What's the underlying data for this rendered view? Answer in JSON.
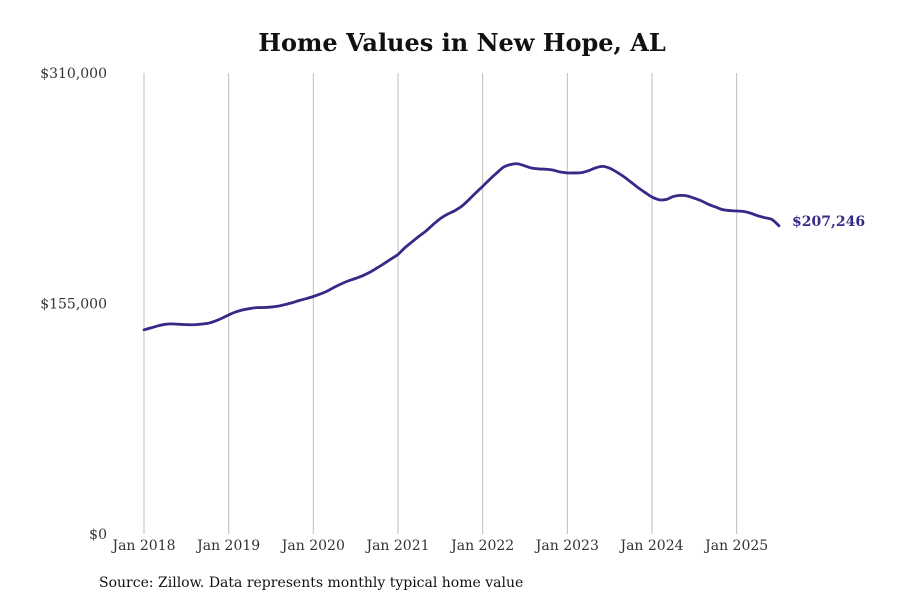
{
  "chart_data": {
    "type": "line",
    "title": "Home Values in New Hope, AL",
    "xlabel": "",
    "ylabel": "",
    "source": "Source: Zillow. Data represents monthly typical home value",
    "x_tick_labels": [
      "Jan 2018",
      "Jan 2019",
      "Jan 2020",
      "Jan 2021",
      "Jan 2022",
      "Jan 2023",
      "Jan 2024",
      "Jan 2025"
    ],
    "y_tick_labels": [
      "$0",
      "$155,000",
      "$310,000"
    ],
    "y_ticks": [
      0,
      155000,
      310000
    ],
    "ylim": [
      0,
      310000
    ],
    "xlim": [
      "2018-01",
      "2025-07"
    ],
    "grid": "vertical",
    "line_color": "#352a87",
    "end_label": "$207,246",
    "series": [
      {
        "x": [
          "2018-01",
          "2018-02",
          "2018-03",
          "2018-04",
          "2018-05",
          "2018-06",
          "2018-07",
          "2018-08",
          "2018-09",
          "2018-10",
          "2018-11",
          "2018-12",
          "2019-01",
          "2019-02",
          "2019-03",
          "2019-04",
          "2019-05",
          "2019-06",
          "2019-07",
          "2019-08",
          "2019-09",
          "2019-10",
          "2019-11",
          "2019-12",
          "2020-01",
          "2020-02",
          "2020-03",
          "2020-04",
          "2020-05",
          "2020-06",
          "2020-07",
          "2020-08",
          "2020-09",
          "2020-10",
          "2020-11",
          "2020-12",
          "2021-01",
          "2021-02",
          "2021-03",
          "2021-04",
          "2021-05",
          "2021-06",
          "2021-07",
          "2021-08",
          "2021-09",
          "2021-10",
          "2021-11",
          "2021-12",
          "2022-01",
          "2022-02",
          "2022-03",
          "2022-04",
          "2022-05",
          "2022-06",
          "2022-07",
          "2022-08",
          "2022-09",
          "2022-10",
          "2022-11",
          "2022-12",
          "2023-01",
          "2023-02",
          "2023-03",
          "2023-04",
          "2023-05",
          "2023-06",
          "2023-07",
          "2023-08",
          "2023-09",
          "2023-10",
          "2023-11",
          "2023-12",
          "2024-01",
          "2024-02",
          "2024-03",
          "2024-04",
          "2024-05",
          "2024-06",
          "2024-07",
          "2024-08",
          "2024-09",
          "2024-10",
          "2024-11",
          "2024-12",
          "2025-01",
          "2025-02",
          "2025-03",
          "2025-04",
          "2025-05",
          "2025-06",
          "2025-07"
        ],
        "values": [
          137300,
          138600,
          140000,
          141000,
          141300,
          141000,
          140800,
          140700,
          141100,
          141600,
          143000,
          145000,
          147300,
          149300,
          150700,
          151600,
          152200,
          152300,
          152600,
          153200,
          154300,
          155500,
          157000,
          158300,
          159700,
          161400,
          163400,
          166000,
          168300,
          170300,
          171900,
          173700,
          176000,
          178800,
          181800,
          184900,
          188000,
          192600,
          196500,
          200300,
          203900,
          208200,
          212100,
          215000,
          217300,
          220300,
          224600,
          229300,
          233800,
          238500,
          242800,
          246800,
          248500,
          248900,
          247500,
          246000,
          245500,
          245300,
          244700,
          243400,
          242800,
          242800,
          243000,
          244300,
          246200,
          247200,
          246000,
          243400,
          240300,
          236700,
          233000,
          229700,
          226600,
          224800,
          224900,
          226900,
          227700,
          227300,
          225800,
          224000,
          221700,
          219900,
          218100,
          217500,
          217200,
          216900,
          215700,
          214000,
          212700,
          211500,
          207246
        ]
      }
    ]
  }
}
